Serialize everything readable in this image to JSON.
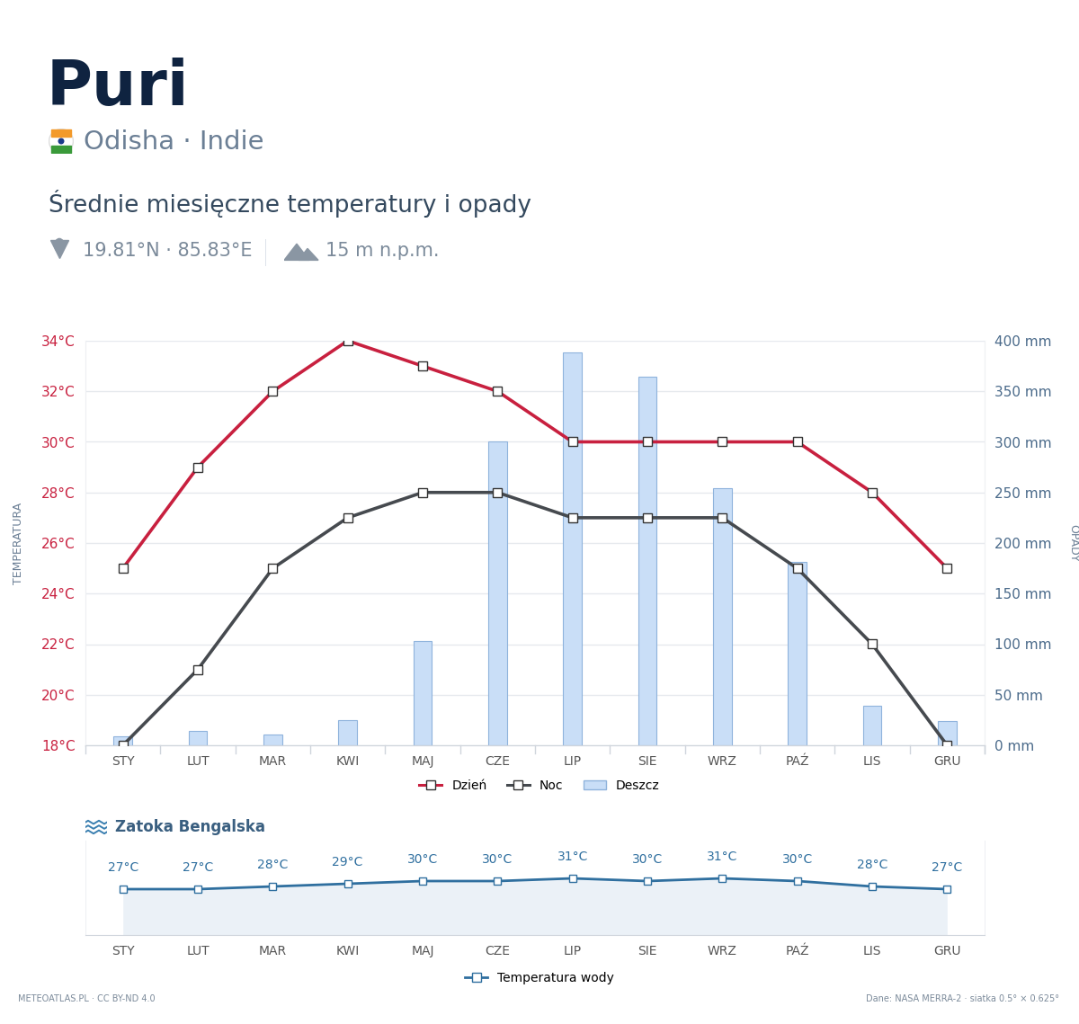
{
  "header": {
    "title": "Puri",
    "subtitle": "Odisha · Indie",
    "heading": "Średnie miesięczne temperatury i opady",
    "coordinates": "19.81°N · 85.83°E",
    "elevation": "15 m n.p.m."
  },
  "chart_data": [
    {
      "type": "line",
      "categories": [
        "STY",
        "LUT",
        "MAR",
        "KWI",
        "MAJ",
        "CZE",
        "LIP",
        "SIE",
        "WRZ",
        "PAŹ",
        "LIS",
        "GRU"
      ],
      "series": [
        {
          "name": "Dzień",
          "color": "#c8203f",
          "marker": "square",
          "values": [
            25,
            29,
            32,
            34,
            33,
            32,
            30,
            30,
            30,
            30,
            28,
            25
          ]
        },
        {
          "name": "Noc",
          "color": "#464a4f",
          "marker": "square",
          "values": [
            18,
            21,
            25,
            27,
            28,
            28,
            27,
            27,
            27,
            25,
            22,
            18
          ]
        },
        {
          "name": "Deszcz",
          "type": "bar",
          "axis": "y2",
          "color": "#c9def7",
          "values": [
            9,
            14,
            11,
            25,
            103,
            300,
            388,
            364,
            254,
            181,
            39,
            24
          ]
        }
      ],
      "ylabel": "TEMPERATURA",
      "y2label": "OPADY",
      "ylim": [
        18,
        34
      ],
      "yticks": [
        {
          "value": 18,
          "label": "18°C"
        },
        {
          "value": 20,
          "label": "20°C"
        },
        {
          "value": 22,
          "label": "22°C"
        },
        {
          "value": 24,
          "label": "24°C"
        },
        {
          "value": 26,
          "label": "26°C"
        },
        {
          "value": 28,
          "label": "28°C"
        },
        {
          "value": 30,
          "label": "30°C"
        },
        {
          "value": 32,
          "label": "32°C"
        },
        {
          "value": 34,
          "label": "34°C"
        }
      ],
      "y2lim": [
        0,
        400
      ],
      "y2ticks": [
        {
          "value": 0,
          "label": "0 mm"
        },
        {
          "value": 50,
          "label": "50 mm"
        },
        {
          "value": 100,
          "label": "100 mm"
        },
        {
          "value": 150,
          "label": "150 mm"
        },
        {
          "value": 200,
          "label": "200 mm"
        },
        {
          "value": 250,
          "label": "250 mm"
        },
        {
          "value": 300,
          "label": "300 mm"
        },
        {
          "value": 350,
          "label": "350 mm"
        },
        {
          "value": 400,
          "label": "400 mm"
        }
      ],
      "grid": true,
      "legend": "bottom"
    },
    {
      "type": "line",
      "title": "Zatoka Bengalska",
      "categories": [
        "STY",
        "LUT",
        "MAR",
        "KWI",
        "MAJ",
        "CZE",
        "LIP",
        "SIE",
        "WRZ",
        "PAŹ",
        "LIS",
        "GRU"
      ],
      "series": [
        {
          "name": "Temperatura wody",
          "color": "#2f6f9f",
          "marker": "square",
          "values": [
            27,
            27,
            28,
            29,
            30,
            30,
            31,
            30,
            31,
            30,
            28,
            27
          ],
          "value_labels": [
            "27°C",
            "27°C",
            "28°C",
            "29°C",
            "30°C",
            "30°C",
            "31°C",
            "30°C",
            "31°C",
            "30°C",
            "28°C",
            "27°C"
          ]
        }
      ],
      "ylim": [
        10,
        45
      ],
      "data_labels": true,
      "tick_labels": "x",
      "legend": "bottom"
    }
  ],
  "footer": {
    "left": "METEOATLAS.PL · CC BY-ND 4.0",
    "right": "Dane: NASA MERRA-2 · siatka 0.5° × 0.625°"
  }
}
